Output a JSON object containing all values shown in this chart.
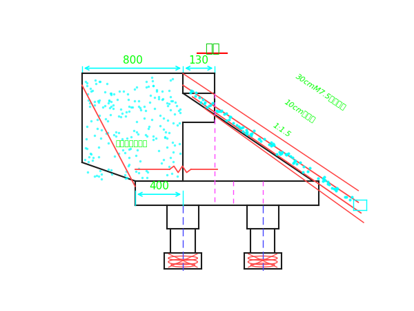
{
  "bg_color": "#ffffff",
  "title": "侧面",
  "title_color": "#00cc00",
  "title_underline_color": "#ff0000",
  "dim_color": "#00ff00",
  "line_color": "#1a1a1a",
  "red_color": "#ff4444",
  "red2_color": "#ff0000",
  "cyan_color": "#00ffff",
  "magenta_color": "#ff44ff",
  "blue_color": "#4444ff",
  "label_800": "800",
  "label_130": "130",
  "label_400": "400",
  "label_slope": "1:1.5",
  "label_layer1": "30cmM7.5浆砌片石",
  "label_layer2": "10cm砂浆层",
  "label_fill": "台背回填砂性土"
}
